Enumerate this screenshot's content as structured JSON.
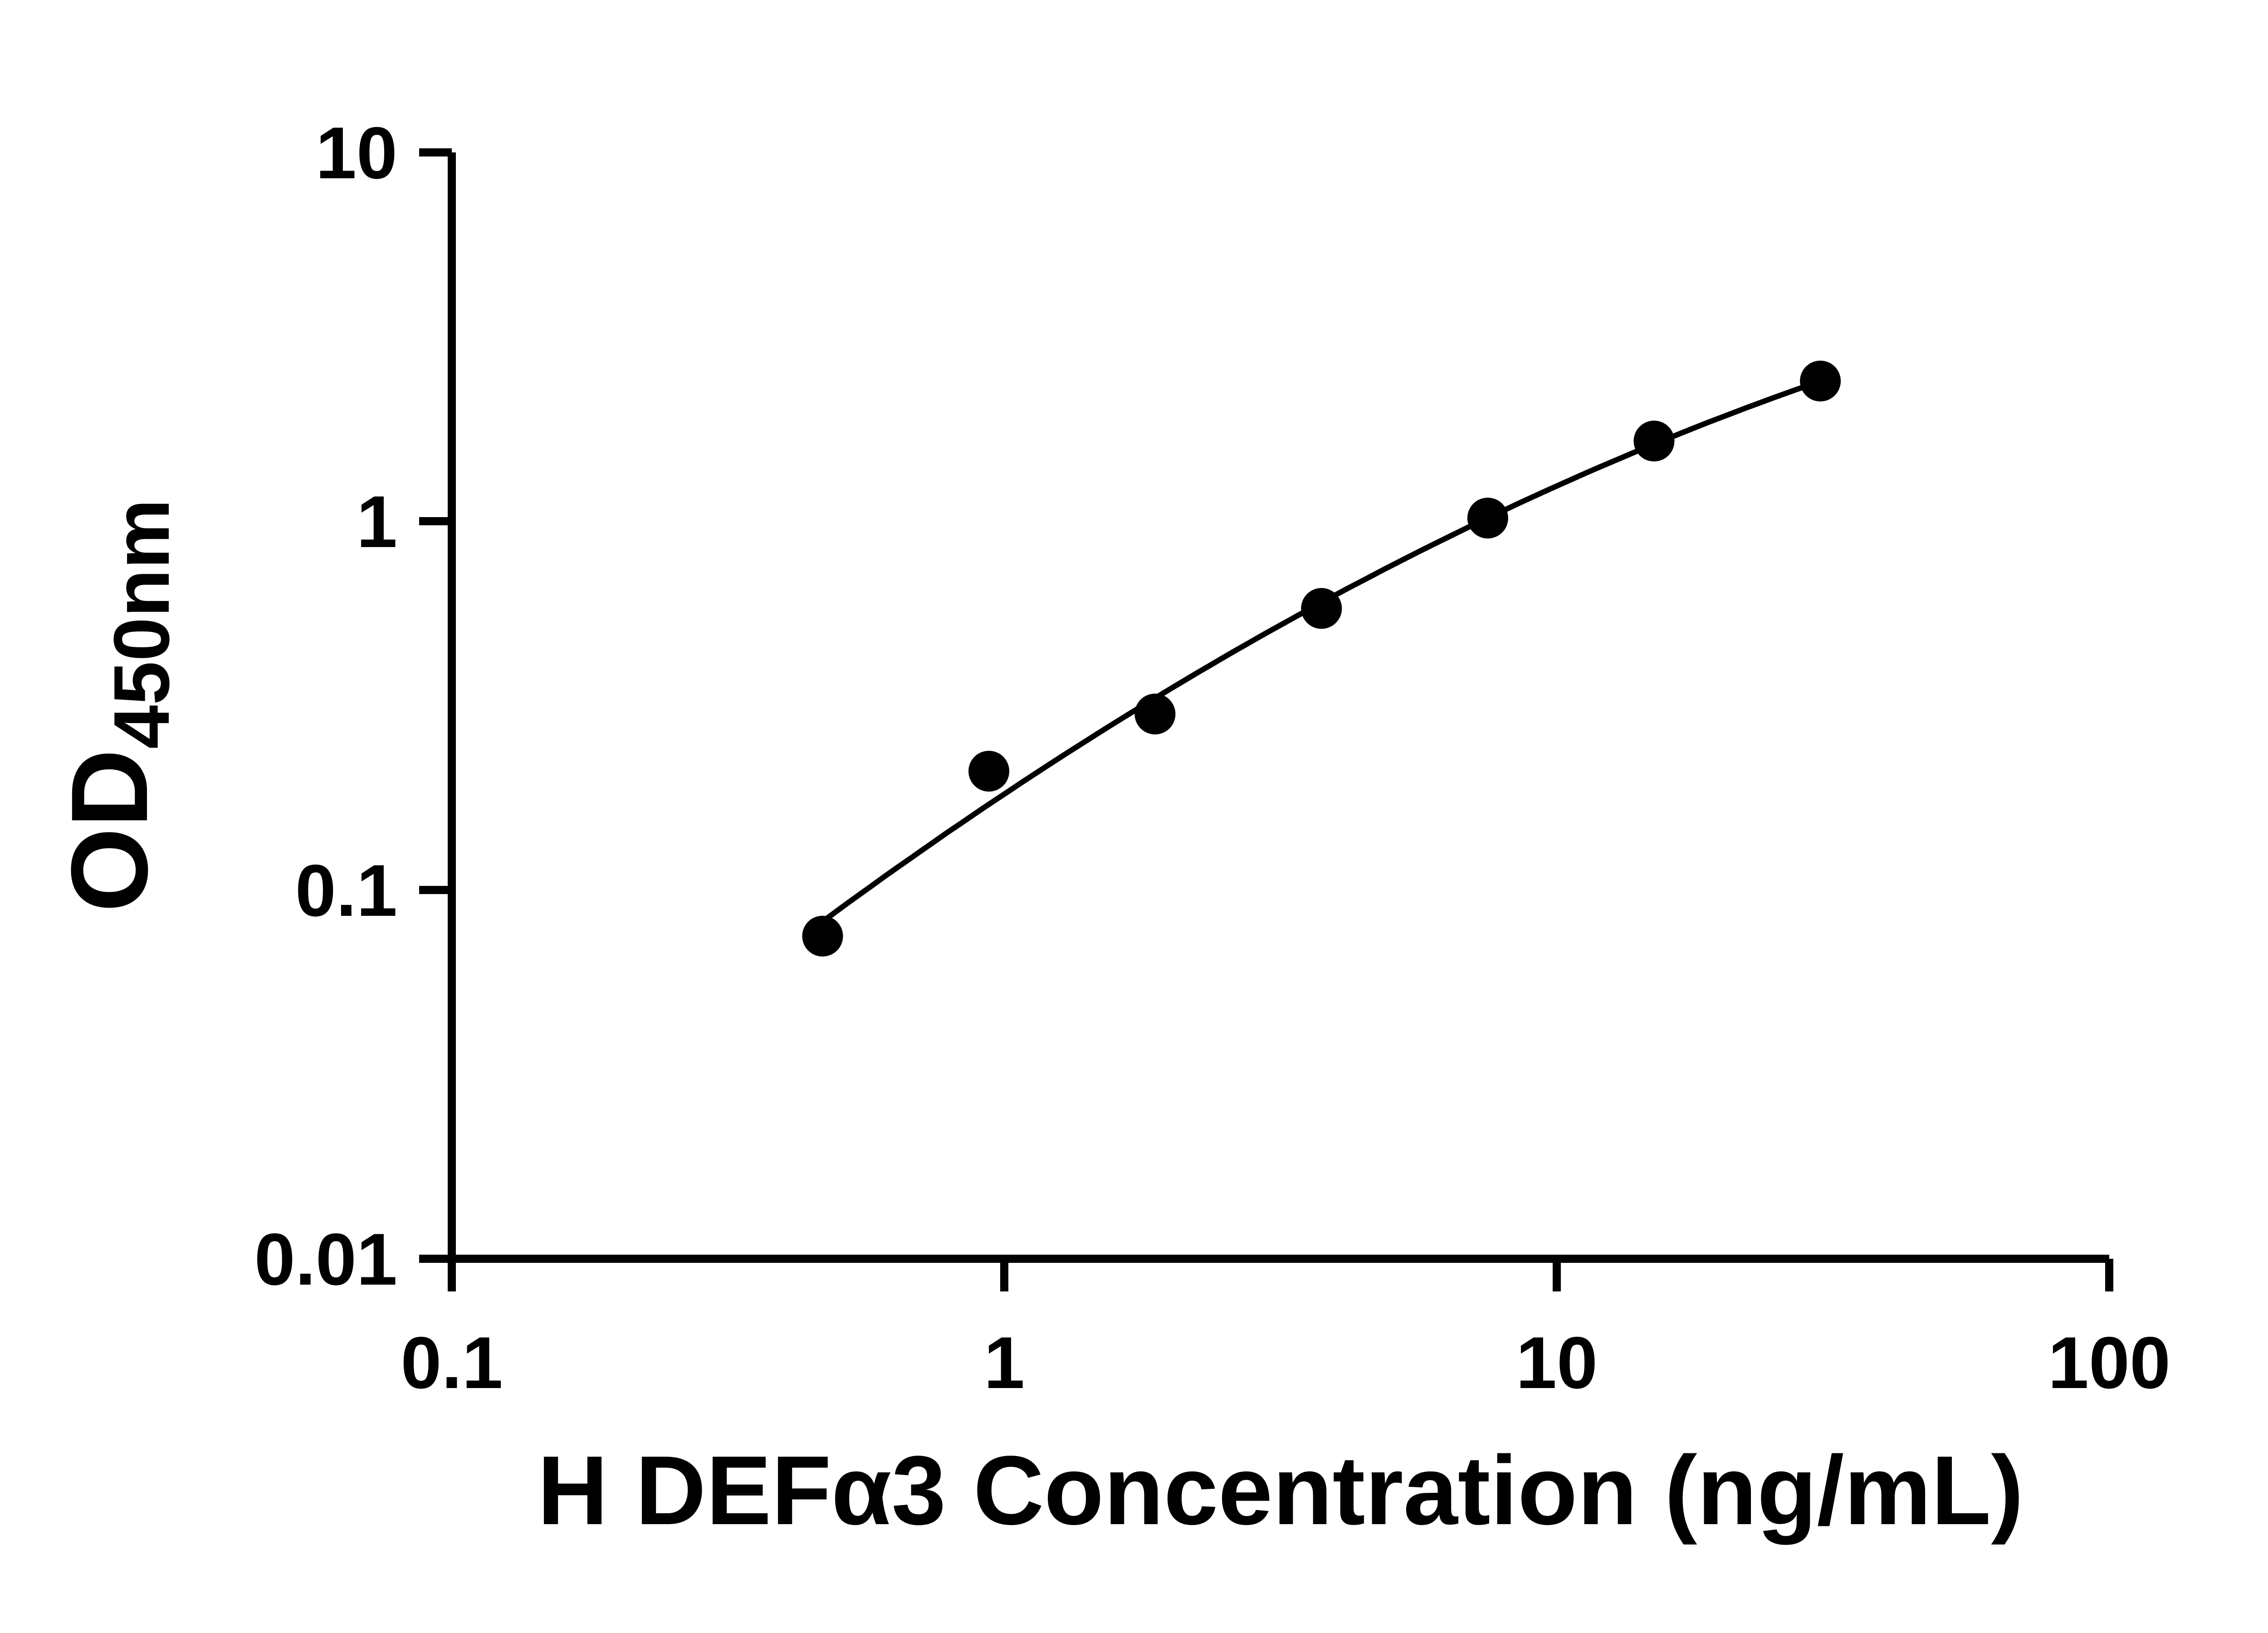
{
  "chart_data": {
    "type": "scatter",
    "title": "",
    "xlabel": "H DEFα3 Concentration (ng/mL)",
    "ylabel_main": "OD",
    "ylabel_sub": "450nm",
    "x_scale": "log10",
    "y_scale": "log10",
    "xlim": [
      0.1,
      100
    ],
    "ylim": [
      0.01,
      10
    ],
    "grid": false,
    "legend": null,
    "x_ticks": [
      {
        "value": 0.1,
        "label": "0.1"
      },
      {
        "value": 1,
        "label": "1"
      },
      {
        "value": 10,
        "label": "10"
      },
      {
        "value": 100,
        "label": "100"
      }
    ],
    "y_ticks": [
      {
        "value": 0.01,
        "label": "0.01"
      },
      {
        "value": 0.1,
        "label": "0.1"
      },
      {
        "value": 1,
        "label": "1"
      },
      {
        "value": 10,
        "label": "10"
      }
    ],
    "series": [
      {
        "name": "H DEFα3 standard curve",
        "marker": "filled-circle",
        "fit": "smooth curve through points (quadratic in log-log space)",
        "points": [
          {
            "x": 0.469,
            "y": 0.075
          },
          {
            "x": 0.938,
            "y": 0.21
          },
          {
            "x": 1.875,
            "y": 0.3
          },
          {
            "x": 3.75,
            "y": 0.58
          },
          {
            "x": 7.5,
            "y": 1.02
          },
          {
            "x": 15,
            "y": 1.65
          },
          {
            "x": 30,
            "y": 2.4
          }
        ]
      }
    ],
    "colors": {
      "axis": "#000000",
      "text": "#000000",
      "marker": "#000000",
      "line": "#000000",
      "background": "#ffffff"
    }
  }
}
